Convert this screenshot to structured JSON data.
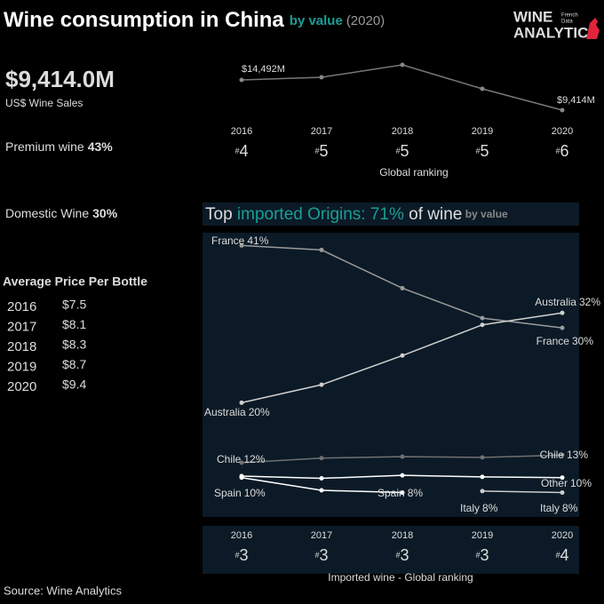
{
  "header": {
    "title": "Wine consumption in China",
    "subtitle": "by value",
    "year": "(2020)",
    "logo_top": "WINE",
    "logo_bottom": "ANALYTICS",
    "logo_tag_1": "French",
    "logo_tag_2": "Data"
  },
  "kpis": {
    "sales": "$9,414.0M",
    "sales_label": "US$ Wine Sales",
    "premium": {
      "label": "Premium wine",
      "value": "43%"
    },
    "domestic": {
      "label": "Domestic Wine",
      "value": "30%"
    }
  },
  "price_table": {
    "title": "Average Price Per Bottle",
    "rows": [
      [
        "2016",
        "$7.5"
      ],
      [
        "2017",
        "$8.1"
      ],
      [
        "2018",
        "$8.3"
      ],
      [
        "2019",
        "$8.7"
      ],
      [
        "2020",
        "$9.4"
      ]
    ]
  },
  "source": "Source: Wine Analytics",
  "chart_data": [
    {
      "type": "line",
      "categories": [
        "2016",
        "2017",
        "2018",
        "2019",
        "2020"
      ],
      "values": [
        14492,
        14940,
        17030,
        13000,
        9414
      ],
      "value_labels": [
        "$14,492M",
        null,
        null,
        null,
        "$9,414M"
      ],
      "color": "#777777",
      "label_color": "#1a9e96",
      "ranks": [
        "#4",
        "#5",
        "#5",
        "#5",
        "#6"
      ],
      "ranks_title": "Global ranking"
    },
    {
      "type": "line",
      "title_parts": [
        "Top ",
        "imported Origins: 71%",
        " of wine",
        " by value"
      ],
      "categories": [
        "2016",
        "2017",
        "2018",
        "2019",
        "2020"
      ],
      "series": [
        {
          "name": "France",
          "color": "#9a9a9a",
          "values": [
            41,
            40.4,
            35.3,
            31.3,
            30
          ],
          "value_labels": [
            "41%",
            null,
            null,
            null,
            "30%"
          ]
        },
        {
          "name": "Australia",
          "color": "#d0d0d0",
          "values": [
            20,
            22.4,
            26.3,
            30.4,
            32
          ],
          "value_labels": [
            "20%",
            null,
            null,
            null,
            "32%"
          ]
        },
        {
          "name": "Chile",
          "color": "#707070",
          "values": [
            12,
            12.6,
            12.8,
            12.7,
            13
          ],
          "value_labels": [
            "12%",
            null,
            null,
            null,
            "13%"
          ]
        },
        {
          "name": "Spain",
          "color": "#ffffff",
          "values": [
            10,
            8.3,
            8,
            null,
            null
          ],
          "value_labels": [
            "10%",
            null,
            "8%",
            null,
            null
          ]
        },
        {
          "name": "Other",
          "color": "#ffffff",
          "values": [
            10.2,
            9.9,
            10.3,
            10.1,
            10
          ],
          "value_labels": [
            null,
            null,
            null,
            null,
            "10%"
          ]
        },
        {
          "name": "Italy",
          "color": "#cccccc",
          "values": [
            null,
            null,
            null,
            8.2,
            8
          ],
          "value_labels": [
            null,
            null,
            null,
            "8%",
            "8%"
          ]
        }
      ],
      "ranks": [
        "#3",
        "#3",
        "#3",
        "#3",
        "#4"
      ],
      "ranks_title": "Imported wine - Global ranking"
    }
  ]
}
